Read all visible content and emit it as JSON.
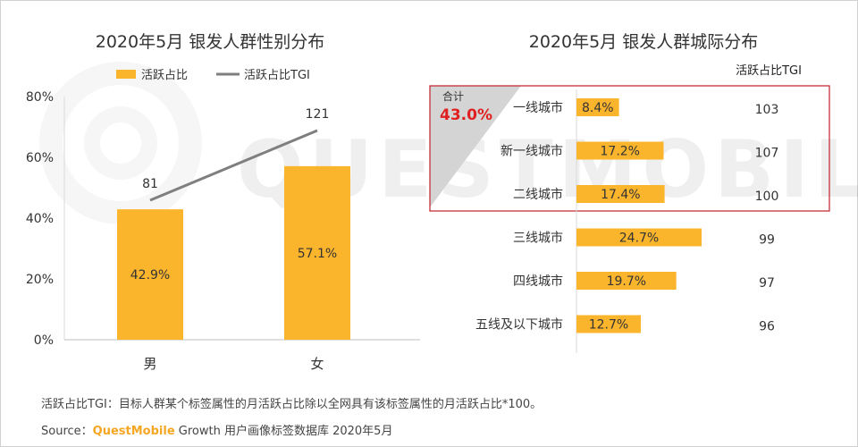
{
  "chart_data": [
    {
      "type": "bar",
      "title": "2020年5月 银发人群性别分布",
      "categories": [
        "男",
        "女"
      ],
      "series": [
        {
          "name": "活跃占比",
          "values": [
            42.9,
            57.1
          ],
          "labels": [
            "42.9%",
            "57.1%"
          ],
          "color": "#FBB52D"
        },
        {
          "name": "活跃占比TGI",
          "type": "line",
          "values": [
            81,
            121
          ],
          "labels": [
            "81",
            "121"
          ],
          "color": "#7F7F7F"
        }
      ],
      "y_ticks": [
        "0%",
        "20%",
        "40%",
        "60%",
        "80%"
      ],
      "ylim": [
        0,
        80
      ],
      "legend_position": "top"
    },
    {
      "type": "bar",
      "orientation": "horizontal",
      "title": "2020年5月 银发人群城际分布",
      "categories": [
        "一线城市",
        "新一线城市",
        "二线城市",
        "三线城市",
        "四线城市",
        "五线及以下城市"
      ],
      "series": [
        {
          "name": "活跃占比",
          "values": [
            8.4,
            17.2,
            17.4,
            24.7,
            19.7,
            12.7
          ],
          "labels": [
            "8.4%",
            "17.2%",
            "17.4%",
            "24.7%",
            "19.7%",
            "12.7%"
          ],
          "color": "#FBB52D"
        }
      ],
      "tgi_header": "活跃占比TGI",
      "tgi_values": [
        "103",
        "107",
        "100",
        "99",
        "97",
        "96"
      ],
      "highlight": {
        "label": "合计",
        "value": "43.0%",
        "color": "#E02020"
      }
    }
  ],
  "footer": {
    "note": "活跃占比TGI：目标人群某个标签属性的月活跃占比除以全网具有该标签属性的月活跃占比*100。",
    "source_prefix": "Source：",
    "source_brand": "QuestMobile",
    "source_rest": " Growth 用户画像标签数据库 2020年5月"
  },
  "watermark": "QUESTMOBILE"
}
